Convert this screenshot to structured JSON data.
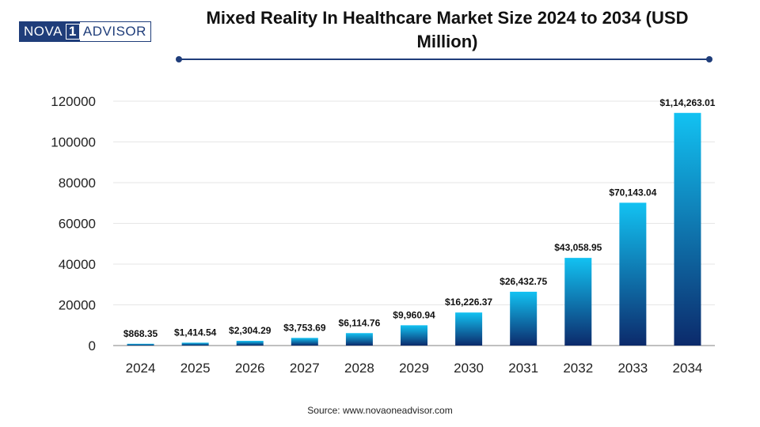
{
  "logo": {
    "part1": "NOVA",
    "part2": "1",
    "part3": "ADVISOR"
  },
  "header": {
    "title_line1": "Mixed Reality In Healthcare Market Size 2024 to 2034 (USD",
    "title_line2": "Million)"
  },
  "source": "Source: www.novaoneadvisor.com",
  "colors": {
    "accent": "#1f3d7a",
    "bar_top": "#12c2f2",
    "bar_bottom": "#0c2a6b"
  },
  "chart_data": {
    "type": "bar",
    "title": "Mixed Reality In Healthcare Market Size 2024 to 2034 (USD Million)",
    "xlabel": "",
    "ylabel": "",
    "categories": [
      "2024",
      "2025",
      "2026",
      "2027",
      "2028",
      "2029",
      "2030",
      "2031",
      "2032",
      "2033",
      "2034"
    ],
    "values": [
      868.35,
      1414.54,
      2304.29,
      3753.69,
      6114.76,
      9960.94,
      16226.37,
      26432.75,
      43058.95,
      70143.04,
      114263.01
    ],
    "value_labels": [
      "$868.35",
      "$1,414.54",
      "$2,304.29",
      "$3,753.69",
      "$6,114.76",
      "$9,960.94",
      "$16,226.37",
      "$26,432.75",
      "$43,058.95",
      "$70,143.04",
      "$1,14,263.01"
    ],
    "yticks": [
      0,
      20000,
      40000,
      60000,
      80000,
      100000,
      120000
    ],
    "ylim": [
      0,
      120000
    ],
    "grid": true,
    "legend": "none"
  }
}
